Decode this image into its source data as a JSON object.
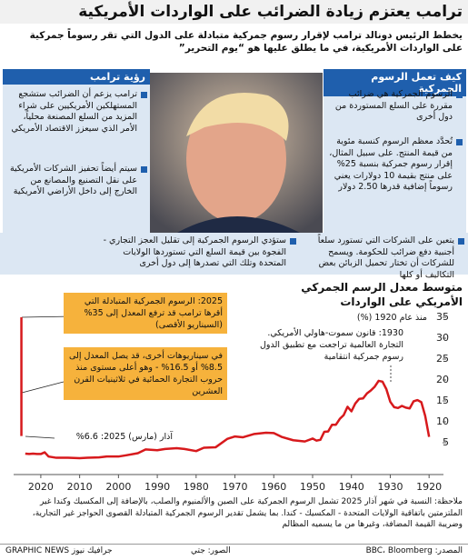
{
  "header": {
    "title": "ترامب يعتزم زيادة الضرائب على الواردات الأمريكية",
    "subtitle": "يخطط الرئيس دونالد ترامب لإقرار رسوم جمركية متبادلة على الدول التي تقر رسوماً جمركية على الواردات الأمريكية، في ما يطلق عليها هو “يوم التحرير”"
  },
  "how_tariffs_work": {
    "heading": "كيف تعمل الرسوم الجمركية",
    "points": [
      "الرسوم الجمركية هي ضرائب مقررة على السلع المستوردة من دول أخرى",
      "تُحدَّد معظم الرسوم كنسبة مئوية من قيمة المنتج. على سبيل المثال، إقرار رسوم جمركية بنسبة 25% على منتج بقيمة 10 دولارات يعني رسوماً إضافية قدرها 2.50 دولار",
      "يتعين على الشركات التي تستورد سلعاً أجنبية دفع ضرائب للحكومة. ويسمح للشركات أن تختار تحميل الزبائن بعض التكاليف أو كلها"
    ]
  },
  "trump_vision": {
    "heading": "رؤية ترامب",
    "points": [
      "ترامب يزعم أن الضرائب ستشجع المستهلكين الأمريكيين على شراء المزيد من السلع المصنعة محلياً، الأمر الذي سيعزز الاقتصاد الأمريكي",
      "سيتم أيضاً تحفيز الشركات الأمريكية على نقل التصنيع والمصانع من الخارج إلى داخل الأراضي الأمريكية",
      "ستؤدي الرسوم الجمركية إلى تقليل العجز التجاري - الفجوة بين قيمة السلع التي تستوردها الولايات المتحدة وتلك التي تصدرها إلى دول أخرى"
    ]
  },
  "chart_data": {
    "type": "line",
    "title": "متوسط معدل الرسم الجمركي الأمريكي على الواردات",
    "subtitle": "منذ عام 1920 (%)",
    "series": [
      {
        "color": "#d7191c",
        "x": [
          1920,
          1921,
          1922,
          1923,
          1924,
          1925,
          1926,
          1927,
          1928,
          1929,
          1930,
          1931,
          1932,
          1933,
          1934,
          1935,
          1936,
          1937,
          1938,
          1939,
          1940,
          1941,
          1942,
          1943,
          1944,
          1945,
          1946,
          1947,
          1948,
          1949,
          1950,
          1952,
          1955,
          1958,
          1960,
          1962,
          1965,
          1968,
          1970,
          1972,
          1975,
          1978,
          1980,
          1983,
          1985,
          1988,
          1990,
          1993,
          1995,
          1998,
          2000,
          2003,
          2005,
          2008,
          2010,
          2013,
          2016,
          2018,
          2019,
          2020,
          2021,
          2022,
          2023,
          2024
        ],
        "values": [
          6.4,
          11.4,
          14.7,
          15.2,
          14.9,
          13.2,
          13.4,
          13.8,
          13.3,
          13.5,
          14.8,
          17.8,
          19.6,
          19.8,
          18.4,
          17.5,
          16.8,
          15.6,
          15.5,
          14.4,
          12.5,
          13.6,
          11.6,
          10.7,
          9.3,
          9.3,
          7.7,
          7.6,
          5.7,
          5.5,
          6.0,
          5.3,
          5.6,
          6.4,
          7.3,
          7.4,
          7.1,
          6.3,
          6.5,
          5.9,
          3.9,
          3.8,
          3.0,
          3.5,
          3.7,
          3.5,
          3.2,
          3.4,
          2.5,
          2.0,
          1.7,
          1.7,
          1.5,
          1.4,
          1.3,
          1.4,
          1.4,
          1.7,
          2.7,
          2.3,
          2.3,
          2.4,
          2.3,
          2.4
        ]
      },
      {
        "color": "#d7191c",
        "x": [
          2025,
          2025
        ],
        "values": [
          6.6,
          35
        ]
      }
    ],
    "annotations": [
      "2025: الرسوم الجمركية المتبادلة التي أقرها ترامب قد ترفع المعدل إلى 35% (السيناريو الأقصى)",
      "في سيناريوهات أخرى، قد يصل المعدل إلى 8.5% أو 16.5% - وهو أعلى مستوى منذ حروب التجارة الحمائية في ثلاثينيات القرن العشرين",
      "آذار (مارس) 2025: 6.6%",
      "1930: قانون سموت-هاولي الأمريكي. التجارة العالمية تراجعت مع تطبيق الدول رسوم جمركية انتقامية"
    ],
    "xlim": [
      2027,
      1917
    ],
    "xticks": [
      1920,
      1930,
      1940,
      1950,
      1960,
      1970,
      1980,
      1990,
      2000,
      2010,
      2020
    ],
    "ylim": [
      0,
      37.5
    ],
    "yticks": [
      5,
      10,
      15,
      20,
      25,
      30,
      35
    ],
    "grid": false
  },
  "note": "ملاحظة: النسبة في شهر آذار 2025 تشمل الرسوم الجمركية على الصين والألمنيوم والصلب، بالإضافة إلى المكسيك وكندا غير الملتزمتين باتفاقية الولايات المتحدة - المكسيك - كندا. بما يشمل تقدير الرسوم الجمركية المتبادلة القصوى الحواجز غير التجارية، وضريبة القيمة المضافة، وغيرها من ما يسميه المظالم",
  "footer": {
    "source": "المصدر: BBC، Bloomberg",
    "photo": "الصور: جتي",
    "credit": "GRAPHIC NEWS جرافيك نيوز"
  }
}
